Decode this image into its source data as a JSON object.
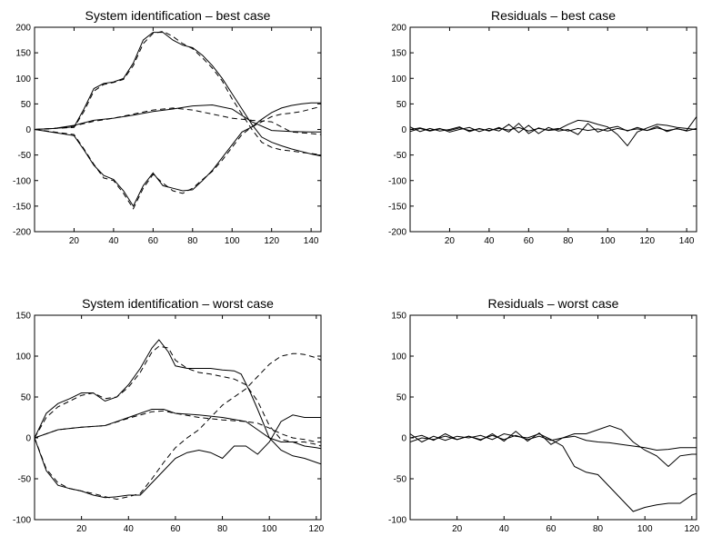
{
  "chart_data": [
    {
      "type": "line",
      "title": "System identification – best case",
      "xlim": [
        0,
        145
      ],
      "ylim": [
        -200,
        200
      ],
      "xticks": [
        20,
        40,
        60,
        80,
        100,
        120,
        140
      ],
      "yticks": [
        -200,
        -150,
        -100,
        -50,
        0,
        50,
        100,
        150,
        200
      ],
      "series": [
        {
          "style": "solid",
          "x": [
            0,
            10,
            20,
            25,
            30,
            35,
            40,
            45,
            50,
            55,
            60,
            65,
            70,
            75,
            80,
            85,
            90,
            95,
            100,
            105,
            110,
            115,
            120,
            125,
            130,
            135,
            140,
            145
          ],
          "y": [
            0,
            2,
            5,
            40,
            80,
            90,
            93,
            100,
            130,
            175,
            190,
            190,
            175,
            165,
            160,
            145,
            125,
            100,
            70,
            40,
            10,
            -15,
            -25,
            -32,
            -38,
            -43,
            -48,
            -52
          ]
        },
        {
          "style": "dashed",
          "x": [
            0,
            10,
            20,
            25,
            30,
            35,
            40,
            45,
            50,
            55,
            60,
            65,
            70,
            75,
            80,
            85,
            90,
            95,
            100,
            105,
            110,
            115,
            120,
            125,
            130,
            135,
            140,
            145
          ],
          "y": [
            0,
            2,
            4,
            35,
            75,
            88,
            92,
            98,
            125,
            168,
            188,
            192,
            182,
            168,
            158,
            140,
            120,
            95,
            60,
            30,
            0,
            -25,
            -35,
            -40,
            -42,
            -45,
            -47,
            -50
          ]
        },
        {
          "style": "solid",
          "x": [
            0,
            10,
            20,
            30,
            40,
            50,
            60,
            70,
            80,
            90,
            100,
            110,
            120,
            130,
            140,
            145
          ],
          "y": [
            0,
            2,
            8,
            18,
            22,
            28,
            35,
            40,
            46,
            48,
            40,
            15,
            -2,
            -4,
            -5,
            -5
          ]
        },
        {
          "style": "dashed",
          "x": [
            0,
            10,
            20,
            30,
            40,
            50,
            60,
            70,
            80,
            90,
            100,
            110,
            120,
            130,
            140,
            145
          ],
          "y": [
            0,
            2,
            7,
            16,
            22,
            30,
            38,
            42,
            38,
            30,
            22,
            18,
            15,
            -5,
            -8,
            -10
          ]
        },
        {
          "style": "solid",
          "x": [
            0,
            10,
            20,
            25,
            30,
            35,
            40,
            45,
            50,
            55,
            60,
            65,
            70,
            75,
            80,
            85,
            90,
            95,
            100,
            105,
            110,
            115,
            120,
            125,
            130,
            135,
            140,
            145
          ],
          "y": [
            0,
            -6,
            -12,
            -40,
            -70,
            -90,
            -98,
            -120,
            -150,
            -110,
            -85,
            -110,
            -115,
            -120,
            -118,
            -100,
            -80,
            -55,
            -30,
            -5,
            5,
            20,
            33,
            42,
            47,
            50,
            52,
            52
          ]
        },
        {
          "style": "dashed",
          "x": [
            0,
            10,
            20,
            25,
            30,
            35,
            40,
            45,
            50,
            55,
            60,
            65,
            70,
            75,
            80,
            85,
            90,
            95,
            100,
            105,
            110,
            115,
            120,
            125,
            130,
            135,
            140,
            145
          ],
          "y": [
            0,
            -5,
            -10,
            -38,
            -68,
            -95,
            -100,
            -125,
            -155,
            -115,
            -88,
            -105,
            -120,
            -125,
            -115,
            -98,
            -82,
            -60,
            -35,
            -10,
            5,
            15,
            25,
            30,
            32,
            35,
            40,
            45
          ]
        }
      ]
    },
    {
      "type": "line",
      "title": "Residuals – best case",
      "xlim": [
        0,
        145
      ],
      "ylim": [
        -200,
        200
      ],
      "xticks": [
        20,
        40,
        60,
        80,
        100,
        120,
        140
      ],
      "yticks": [
        -200,
        -150,
        -100,
        -50,
        0,
        50,
        100,
        150,
        200
      ],
      "series": [
        {
          "style": "solid",
          "x": [
            0,
            5,
            10,
            15,
            20,
            25,
            30,
            35,
            40,
            45,
            50,
            55,
            60,
            65,
            70,
            75,
            80,
            85,
            90,
            95,
            100,
            105,
            110,
            115,
            120,
            125,
            130,
            135,
            140,
            145
          ],
          "y": [
            5,
            -4,
            2,
            -3,
            0,
            5,
            -4,
            2,
            -3,
            4,
            -5,
            12,
            -8,
            3,
            -2,
            0,
            10,
            18,
            16,
            10,
            5,
            -10,
            -32,
            -5,
            3,
            10,
            8,
            4,
            2,
            0
          ]
        },
        {
          "style": "solid",
          "x": [
            0,
            5,
            10,
            15,
            20,
            25,
            30,
            35,
            40,
            45,
            50,
            55,
            60,
            65,
            70,
            75,
            80,
            85,
            90,
            95,
            100,
            105,
            110,
            115,
            120,
            125,
            130,
            135,
            140,
            145
          ],
          "y": [
            0,
            3,
            -2,
            2,
            -5,
            0,
            4,
            -4,
            2,
            -3,
            10,
            -6,
            8,
            -8,
            4,
            -3,
            0,
            -10,
            12,
            -5,
            2,
            6,
            -3,
            4,
            -2,
            6,
            -4,
            2,
            -3,
            2
          ]
        },
        {
          "style": "solid",
          "x": [
            0,
            5,
            10,
            15,
            20,
            25,
            30,
            35,
            40,
            45,
            50,
            55,
            60,
            65,
            70,
            75,
            80,
            85,
            90,
            95,
            100,
            105,
            110,
            115,
            120,
            125,
            130,
            135,
            140,
            145
          ],
          "y": [
            -4,
            2,
            -3,
            1,
            -2,
            3,
            -2,
            1,
            -2,
            2,
            -1,
            4,
            -3,
            2,
            -1,
            2,
            -3,
            2,
            -2,
            1,
            -3,
            2,
            -2,
            1,
            -2,
            3,
            -2,
            1,
            -2,
            25
          ]
        }
      ]
    },
    {
      "type": "line",
      "title": "System identification – worst case",
      "xlim": [
        0,
        122
      ],
      "ylim": [
        -100,
        150
      ],
      "xticks": [
        20,
        40,
        60,
        80,
        100,
        120
      ],
      "yticks": [
        -100,
        -50,
        0,
        50,
        100,
        150
      ],
      "series": [
        {
          "style": "solid",
          "x": [
            0,
            5,
            10,
            15,
            20,
            25,
            30,
            35,
            40,
            45,
            50,
            53,
            57,
            60,
            65,
            70,
            75,
            80,
            85,
            88,
            92,
            95,
            100,
            105,
            110,
            115,
            120,
            122
          ],
          "y": [
            0,
            30,
            42,
            48,
            55,
            55,
            45,
            50,
            65,
            85,
            110,
            120,
            105,
            88,
            85,
            85,
            85,
            83,
            82,
            78,
            55,
            35,
            0,
            -15,
            -22,
            -25,
            -30,
            -32
          ]
        },
        {
          "style": "dashed",
          "x": [
            0,
            5,
            10,
            15,
            20,
            25,
            30,
            35,
            40,
            45,
            50,
            53,
            57,
            60,
            65,
            70,
            75,
            80,
            85,
            90,
            95,
            100,
            105,
            110,
            115,
            120,
            122
          ],
          "y": [
            0,
            25,
            38,
            45,
            52,
            55,
            48,
            50,
            62,
            80,
            105,
            112,
            110,
            95,
            85,
            80,
            78,
            75,
            72,
            65,
            45,
            15,
            -2,
            -5,
            -5,
            -8,
            -10
          ]
        },
        {
          "style": "solid",
          "x": [
            0,
            10,
            20,
            30,
            40,
            50,
            55,
            60,
            70,
            80,
            90,
            95,
            100,
            105,
            110,
            115,
            120,
            122
          ],
          "y": [
            0,
            10,
            13,
            15,
            25,
            35,
            35,
            30,
            28,
            25,
            20,
            10,
            0,
            -5,
            -5,
            -10,
            -12,
            -13
          ]
        },
        {
          "style": "dashed",
          "x": [
            0,
            10,
            20,
            30,
            40,
            50,
            55,
            60,
            70,
            80,
            90,
            95,
            100,
            105,
            110,
            115,
            120,
            122
          ],
          "y": [
            0,
            10,
            13,
            15,
            24,
            32,
            33,
            30,
            25,
            22,
            20,
            18,
            12,
            5,
            0,
            -2,
            -5,
            -5
          ]
        },
        {
          "style": "solid",
          "x": [
            0,
            5,
            10,
            15,
            20,
            25,
            30,
            35,
            40,
            45,
            50,
            55,
            60,
            65,
            70,
            75,
            80,
            85,
            90,
            95,
            100,
            105,
            110,
            115,
            120,
            122
          ],
          "y": [
            0,
            -40,
            -58,
            -62,
            -65,
            -70,
            -73,
            -72,
            -70,
            -70,
            -55,
            -40,
            -25,
            -18,
            -15,
            -18,
            -25,
            -10,
            -10,
            -20,
            -5,
            20,
            28,
            25,
            25,
            25
          ]
        },
        {
          "style": "dashed",
          "x": [
            0,
            5,
            10,
            15,
            20,
            25,
            30,
            35,
            40,
            45,
            50,
            55,
            60,
            65,
            70,
            75,
            80,
            85,
            90,
            95,
            100,
            105,
            110,
            112,
            115,
            120,
            122
          ],
          "y": [
            0,
            -38,
            -55,
            -62,
            -65,
            -68,
            -72,
            -75,
            -72,
            -68,
            -50,
            -30,
            -12,
            0,
            10,
            25,
            40,
            50,
            60,
            75,
            90,
            100,
            103,
            103,
            102,
            98,
            95
          ]
        }
      ]
    },
    {
      "type": "line",
      "title": "Residuals – worst case",
      "xlim": [
        0,
        122
      ],
      "ylim": [
        -100,
        150
      ],
      "xticks": [
        20,
        40,
        60,
        80,
        100,
        120
      ],
      "yticks": [
        -100,
        -50,
        0,
        50,
        100,
        150
      ],
      "series": [
        {
          "style": "solid",
          "x": [
            0,
            5,
            10,
            15,
            20,
            25,
            30,
            35,
            40,
            45,
            50,
            55,
            60,
            65,
            70,
            75,
            80,
            85,
            90,
            95,
            100,
            105,
            110,
            115,
            120,
            122
          ],
          "y": [
            5,
            -5,
            2,
            -3,
            2,
            0,
            3,
            -2,
            5,
            2,
            0,
            5,
            -2,
            -10,
            -35,
            -42,
            -45,
            -60,
            -75,
            -90,
            -85,
            -82,
            -80,
            -80,
            -70,
            -68
          ]
        },
        {
          "style": "solid",
          "x": [
            0,
            5,
            10,
            15,
            20,
            25,
            30,
            35,
            40,
            45,
            50,
            55,
            60,
            65,
            70,
            75,
            80,
            85,
            90,
            95,
            100,
            105,
            110,
            115,
            120,
            122
          ],
          "y": [
            0,
            3,
            -3,
            5,
            -2,
            2,
            -3,
            5,
            -4,
            8,
            -4,
            6,
            -8,
            0,
            5,
            5,
            10,
            15,
            10,
            -5,
            -15,
            -22,
            -35,
            -22,
            -20,
            -20
          ]
        },
        {
          "style": "solid",
          "x": [
            0,
            5,
            10,
            15,
            20,
            25,
            30,
            35,
            40,
            45,
            50,
            55,
            60,
            65,
            70,
            75,
            80,
            85,
            90,
            95,
            100,
            105,
            110,
            115,
            120,
            122
          ],
          "y": [
            -5,
            0,
            -2,
            2,
            -2,
            2,
            -2,
            3,
            -2,
            3,
            -2,
            2,
            -3,
            0,
            2,
            -3,
            -5,
            -6,
            -8,
            -10,
            -12,
            -15,
            -14,
            -12,
            -12,
            -12
          ]
        }
      ]
    }
  ]
}
